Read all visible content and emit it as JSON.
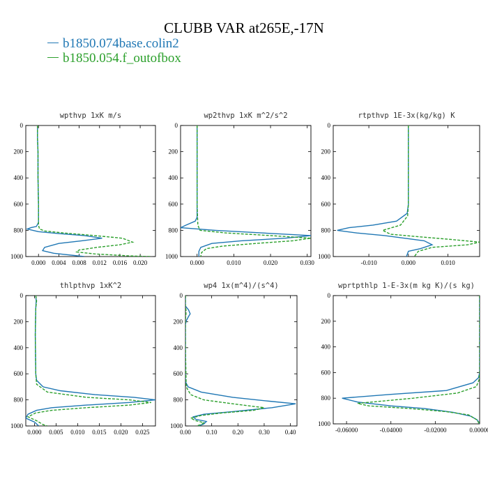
{
  "figure": {
    "title": "CLUBB VAR at265E,-17N",
    "legend": [
      {
        "label": "b1850.074base.colin2",
        "color": "#1f77b4",
        "style": "solid"
      },
      {
        "label": "b1850.054.f_outofbox",
        "color": "#2ca02c",
        "style": "dashed"
      }
    ]
  },
  "chart_data": [
    {
      "type": "line",
      "title": "wpthvp   1xK m/s",
      "xlim": [
        -0.0025,
        0.023
      ],
      "ylim": [
        1000,
        0
      ],
      "xticks": [
        0.0,
        0.004,
        0.008,
        0.012,
        0.016,
        0.02
      ],
      "xtick_labels": [
        "0.000",
        "0.004",
        "0.008",
        "0.012",
        "0.016",
        "0.020"
      ],
      "yticks": [
        0,
        200,
        400,
        600,
        800,
        1000
      ],
      "ytick_labels": [
        "0",
        "200",
        "400",
        "600",
        "800",
        "1000"
      ],
      "series": [
        {
          "name": "b1850.074base.colin2",
          "color": "#1f77b4",
          "points": [
            [
              -0.0025,
              0
            ],
            [
              -0.0025,
              0
            ],
            [
              -0.0025,
              0
            ]
          ],
          "x": [
            -0.0002,
            -0.0002,
            -0.0001,
            -0.0001,
            0.0,
            0.0,
            -0.0004,
            -0.0015,
            -0.0022,
            0.0,
            0.004,
            0.009,
            0.0125,
            0.0085,
            0.004,
            0.0012,
            0.0008,
            0.003,
            0.009
          ],
          "y": [
            0,
            100,
            200,
            400,
            600,
            740,
            770,
            780,
            790,
            810,
            825,
            840,
            860,
            880,
            900,
            930,
            955,
            975,
            1000
          ]
        },
        {
          "name": "b1850.054.f_outofbox",
          "color": "#2ca02c",
          "x": [
            -0.0002,
            -0.0002,
            -0.0001,
            -0.0001,
            0.0,
            0.0,
            0.0002,
            0.0012,
            0.005,
            0.011,
            0.0165,
            0.0185,
            0.016,
            0.0115,
            0.008,
            0.0075,
            0.011,
            0.018,
            0.022
          ],
          "y": [
            0,
            100,
            200,
            400,
            600,
            760,
            790,
            805,
            820,
            840,
            860,
            890,
            910,
            930,
            950,
            965,
            980,
            995,
            1000
          ]
        }
      ]
    },
    {
      "type": "line",
      "title": "wp2thvp   1xK m^2/s^2",
      "xlim": [
        -0.0045,
        0.031
      ],
      "ylim": [
        1000,
        0
      ],
      "xticks": [
        0.0,
        0.01,
        0.02,
        0.03
      ],
      "xtick_labels": [
        "0.000",
        "0.010",
        "0.020",
        "0.030"
      ],
      "yticks": [
        0,
        200,
        400,
        600,
        800,
        1000
      ],
      "ytick_labels": [
        "0",
        "200",
        "400",
        "600",
        "800",
        "1000"
      ],
      "series": [
        {
          "name": "b1850.074base.colin2",
          "color": "#1f77b4",
          "x": [
            0.0,
            0.0,
            0.0,
            0.0,
            0.0,
            -0.0005,
            -0.003,
            -0.0045,
            0.005,
            0.018,
            0.031,
            0.024,
            0.012,
            0.004,
            0.001,
            0.0005,
            0.0005
          ],
          "y": [
            0,
            200,
            400,
            600,
            700,
            730,
            760,
            780,
            800,
            820,
            840,
            860,
            880,
            900,
            930,
            960,
            1000
          ]
        },
        {
          "name": "b1850.054.f_outofbox",
          "color": "#2ca02c",
          "x": [
            0.0,
            0.0,
            0.0,
            0.0,
            0.0002,
            0.0008,
            0.008,
            0.02,
            0.031,
            0.026,
            0.016,
            0.007,
            0.0025,
            0.0012,
            0.001
          ],
          "y": [
            0,
            200,
            400,
            600,
            760,
            800,
            820,
            840,
            860,
            880,
            900,
            920,
            940,
            970,
            1000
          ]
        }
      ]
    },
    {
      "type": "line",
      "title": "rtpthvp   1E-3x(kg/kg) K",
      "xlim": [
        -0.019,
        0.018
      ],
      "ylim": [
        1000,
        0
      ],
      "xticks": [
        -0.01,
        0.0,
        0.01
      ],
      "xtick_labels": [
        "-0.010",
        "0.000",
        "0.010"
      ],
      "yticks": [
        0,
        200,
        400,
        600,
        800,
        1000
      ],
      "ytick_labels": [
        "0",
        "200",
        "400",
        "600",
        "800",
        "1000"
      ],
      "series": [
        {
          "name": "b1850.074base.colin2",
          "color": "#1f77b4",
          "x": [
            0.0,
            0.0,
            0.0,
            0.0,
            -0.0003,
            -0.003,
            -0.009,
            -0.015,
            -0.018,
            -0.013,
            -0.006,
            -0.001,
            0.004,
            0.006,
            0.003,
            0.0,
            -0.0005
          ],
          "y": [
            0,
            200,
            400,
            600,
            670,
            730,
            760,
            780,
            800,
            820,
            840,
            860,
            880,
            910,
            940,
            960,
            1000
          ]
        },
        {
          "name": "b1850.054.f_outofbox",
          "color": "#2ca02c",
          "x": [
            0.0,
            0.0,
            0.0,
            0.0,
            -0.0002,
            -0.002,
            -0.0065,
            -0.0045,
            0.003,
            0.011,
            0.018,
            0.015,
            0.006,
            0.0025,
            0.0015
          ],
          "y": [
            0,
            200,
            400,
            600,
            690,
            760,
            800,
            830,
            850,
            870,
            890,
            910,
            930,
            960,
            1000
          ]
        }
      ]
    },
    {
      "type": "line",
      "title": "thlpthvp   1xK^2",
      "xlim": [
        -0.002,
        0.028
      ],
      "ylim": [
        1000,
        0
      ],
      "xticks": [
        0.0,
        0.005,
        0.01,
        0.015,
        0.02,
        0.025
      ],
      "xtick_labels": [
        "0.000",
        "0.005",
        "0.010",
        "0.015",
        "0.020",
        "0.025"
      ],
      "yticks": [
        0,
        200,
        400,
        600,
        800,
        1000
      ],
      "ytick_labels": [
        "0",
        "200",
        "400",
        "600",
        "800",
        "1000"
      ],
      "series": [
        {
          "name": "b1850.074base.colin2",
          "color": "#1f77b4",
          "x": [
            0.0003,
            0.0004,
            0.0003,
            0.0002,
            0.0003,
            0.0005,
            0.002,
            0.006,
            0.014,
            0.023,
            0.028,
            0.022,
            0.012,
            0.004,
            0.0005,
            -0.0015,
            -0.002,
            0.0,
            0.001
          ],
          "y": [
            0,
            40,
            100,
            300,
            600,
            650,
            700,
            730,
            760,
            780,
            800,
            820,
            840,
            860,
            880,
            910,
            940,
            970,
            1000
          ]
        },
        {
          "name": "b1850.054.f_outofbox",
          "color": "#2ca02c",
          "x": [
            0.0003,
            0.0005,
            0.0003,
            0.0002,
            0.0003,
            0.0005,
            0.003,
            0.012,
            0.022,
            0.027,
            0.022,
            0.012,
            0.004,
            0.0003,
            -0.0015,
            0.0005,
            0.002,
            0.003
          ],
          "y": [
            0,
            40,
            100,
            300,
            600,
            680,
            740,
            780,
            800,
            820,
            840,
            860,
            880,
            900,
            930,
            960,
            990,
            1000
          ]
        }
      ]
    },
    {
      "type": "line",
      "title": "wp4   1x(m^4)/(s^4)",
      "xlim": [
        0.0,
        0.425
      ],
      "ylim": [
        1000,
        0
      ],
      "xticks": [
        0.0,
        0.1,
        0.2,
        0.3,
        0.4
      ],
      "xtick_labels": [
        "0.00",
        "0.10",
        "0.20",
        "0.30",
        "0.40"
      ],
      "yticks": [
        0,
        200,
        400,
        600,
        800,
        1000
      ],
      "ytick_labels": [
        "0",
        "200",
        "400",
        "600",
        "800",
        "1000"
      ],
      "series": [
        {
          "name": "b1850.074base.colin2",
          "color": "#1f77b4",
          "x": [
            0.0,
            0.0,
            0.012,
            0.018,
            0.012,
            0.004,
            0.0,
            0.0,
            0.0,
            0.01,
            0.06,
            0.18,
            0.32,
            0.42,
            0.33,
            0.18,
            0.07,
            0.03,
            0.04,
            0.08,
            0.07,
            0.05
          ],
          "y": [
            0,
            80,
            110,
            140,
            160,
            190,
            220,
            400,
            660,
            700,
            740,
            780,
            810,
            830,
            860,
            890,
            910,
            930,
            950,
            965,
            985,
            1000
          ]
        },
        {
          "name": "b1850.054.f_outofbox",
          "color": "#2ca02c",
          "x": [
            0.0,
            0.0,
            0.002,
            0.002,
            0.001,
            0.0,
            0.0,
            0.003,
            0.02,
            0.07,
            0.18,
            0.3,
            0.26,
            0.14,
            0.06,
            0.02,
            0.04,
            0.07,
            0.06,
            0.04
          ],
          "y": [
            0,
            80,
            110,
            140,
            160,
            190,
            400,
            700,
            760,
            800,
            830,
            860,
            880,
            900,
            920,
            940,
            960,
            975,
            990,
            1000
          ]
        }
      ]
    },
    {
      "type": "line",
      "title": "wprtpthlp   1-E-3x(m kg K)/(s kg)",
      "xlim": [
        -0.066,
        0.0
      ],
      "ylim": [
        1000,
        0
      ],
      "xticks": [
        -0.06,
        -0.04,
        -0.02,
        0.0
      ],
      "xtick_labels": [
        "-0.06000",
        "-0.04000",
        "-0.02000",
        "0.00000"
      ],
      "yticks": [
        0,
        200,
        400,
        600,
        800,
        1000
      ],
      "ytick_labels": [
        "0",
        "200",
        "400",
        "600",
        "800",
        "1000"
      ],
      "series": [
        {
          "name": "b1850.074base.colin2",
          "color": "#1f77b4",
          "x": [
            0.0,
            0.0,
            0.0,
            0.0,
            -0.0005,
            -0.003,
            -0.015,
            -0.04,
            -0.062,
            -0.055,
            -0.04,
            -0.025,
            -0.012,
            -0.004,
            -0.001,
            0.0
          ],
          "y": [
            0,
            200,
            400,
            600,
            640,
            680,
            740,
            770,
            800,
            830,
            860,
            880,
            910,
            940,
            970,
            1000
          ]
        },
        {
          "name": "b1850.054.f_outofbox",
          "color": "#2ca02c",
          "x": [
            0.0,
            0.0,
            0.0,
            0.0,
            -0.0003,
            -0.0015,
            -0.01,
            -0.03,
            -0.055,
            -0.05,
            -0.032,
            -0.015,
            -0.005,
            -0.0015,
            0.0
          ],
          "y": [
            0,
            200,
            400,
            600,
            660,
            710,
            760,
            800,
            840,
            860,
            880,
            905,
            930,
            965,
            1000
          ]
        }
      ]
    }
  ]
}
